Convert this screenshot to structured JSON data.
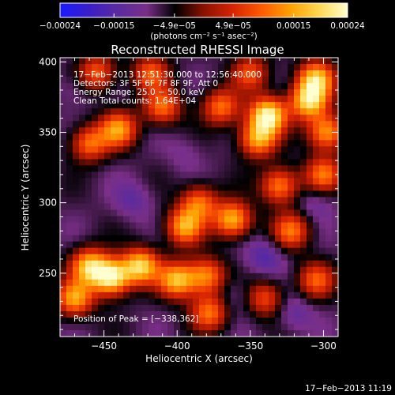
{
  "chart_data": {
    "type": "heatmap",
    "title": "Reconstructed RHESSI Image",
    "xlabel": "Heliocentric X (arcsec)",
    "ylabel": "Heliocentric Y (arcsec)",
    "xlim": [
      -480,
      -290
    ],
    "ylim": [
      205,
      403
    ],
    "x_ticks": [
      -450,
      -400,
      -350,
      -300
    ],
    "x_tick_labels": [
      "−450",
      "−400",
      "−350",
      "−300"
    ],
    "y_ticks": [
      250,
      300,
      350,
      400
    ],
    "y_tick_labels": [
      "250",
      "300",
      "350",
      "400"
    ],
    "colorbar": {
      "range": [
        -0.00024,
        0.00024
      ],
      "ticks": [
        -0.00024,
        -0.00015,
        -4.9e-05,
        4.9e-05,
        0.00015,
        0.00024
      ],
      "tick_labels": [
        "−0.00024",
        "−0.00015",
        "−4.9e−05",
        "4.9e−05",
        "0.00015",
        "0.00024"
      ],
      "units": "(photons cm⁻² s⁻¹ asec⁻²)",
      "colors": [
        "#1a1aff",
        "#3b1ec8",
        "#5a2aa0",
        "#7a2f88",
        "#000000",
        "#8a1200",
        "#d62400",
        "#ff5a00",
        "#ffa000",
        "#ffd850",
        "#ffffd0"
      ]
    },
    "annotations": [
      "17−Feb−2013 12:51:30.000 to 12:56:40.000",
      "Detectors: 3F 5F 6F 7F 8F 9F, Att 0",
      "Energy Range: 25.0 − 50.0 keV",
      "Clean     Total counts: 1.64E+04"
    ],
    "peak_text": "Position of Peak = [−338,362]",
    "peak": [
      -338,
      362
    ],
    "grid": false,
    "legend": "none",
    "blobs": [
      {
        "x": -445,
        "y": 247,
        "v": 0.00024
      },
      {
        "x": -425,
        "y": 255,
        "v": 0.0002
      },
      {
        "x": -400,
        "y": 245,
        "v": 0.00018
      },
      {
        "x": -460,
        "y": 255,
        "v": 0.00018
      },
      {
        "x": -470,
        "y": 232,
        "v": 0.00016
      },
      {
        "x": -380,
        "y": 248,
        "v": 0.00014
      },
      {
        "x": -378,
        "y": 222,
        "v": 0.00012
      },
      {
        "x": -362,
        "y": 288,
        "v": 0.00018
      },
      {
        "x": -395,
        "y": 283,
        "v": 0.00016
      },
      {
        "x": -385,
        "y": 300,
        "v": 0.00012
      },
      {
        "x": -338,
        "y": 362,
        "v": 0.00024
      },
      {
        "x": -345,
        "y": 345,
        "v": 0.00016
      },
      {
        "x": -310,
        "y": 372,
        "v": 0.0002
      },
      {
        "x": -305,
        "y": 388,
        "v": 0.00018
      },
      {
        "x": -298,
        "y": 350,
        "v": 0.00016
      },
      {
        "x": -440,
        "y": 352,
        "v": 0.00015
      },
      {
        "x": -460,
        "y": 342,
        "v": 0.00012
      },
      {
        "x": -410,
        "y": 368,
        "v": 0.00012
      },
      {
        "x": -370,
        "y": 368,
        "v": 0.00012
      },
      {
        "x": -330,
        "y": 312,
        "v": 0.00014
      },
      {
        "x": -322,
        "y": 280,
        "v": 0.00012
      },
      {
        "x": -300,
        "y": 320,
        "v": 0.00012
      },
      {
        "x": -305,
        "y": 245,
        "v": 0.0001
      },
      {
        "x": -340,
        "y": 232,
        "v": 9e-05
      },
      {
        "x": -418,
        "y": 392,
        "v": 0.0001
      },
      {
        "x": -455,
        "y": 392,
        "v": 0.00011
      },
      {
        "x": -350,
        "y": 392,
        "v": 9e-05
      }
    ],
    "dips": [
      {
        "x": -430,
        "y": 302,
        "v": -0.00012
      },
      {
        "x": -340,
        "y": 262,
        "v": -0.00014
      },
      {
        "x": -360,
        "y": 235,
        "v": -0.0001
      },
      {
        "x": -470,
        "y": 382,
        "v": -0.0001
      },
      {
        "x": -395,
        "y": 335,
        "v": -9e-05
      },
      {
        "x": -305,
        "y": 300,
        "v": -0.00011
      },
      {
        "x": -320,
        "y": 222,
        "v": -0.00012
      }
    ]
  },
  "footer_timestamp": "17−Feb−2013 11:19"
}
